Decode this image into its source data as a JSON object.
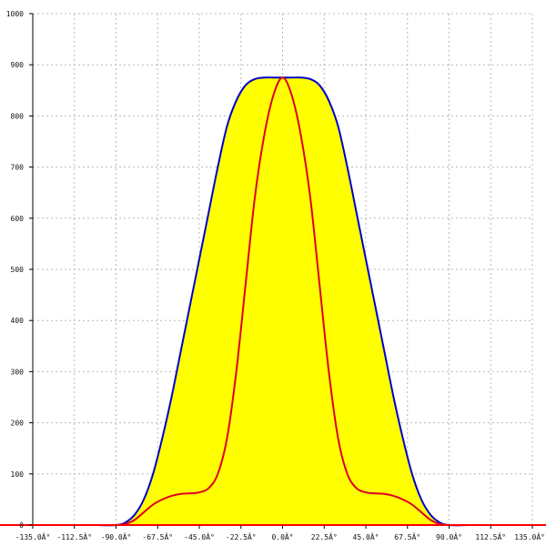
{
  "chart_data": {
    "type": "area",
    "title": "",
    "xlabel": "",
    "ylabel": "",
    "xlim": [
      -135,
      135
    ],
    "ylim": [
      0,
      1000
    ],
    "grid": true,
    "x_ticks": [
      {
        "value": -135,
        "label": "-135.0Â°"
      },
      {
        "value": -112.5,
        "label": "-112.5Â°"
      },
      {
        "value": -90,
        "label": "-90.0Â°"
      },
      {
        "value": -67.5,
        "label": "-67.5Â°"
      },
      {
        "value": -45,
        "label": "-45.0Â°"
      },
      {
        "value": -22.5,
        "label": "-22.5Â°"
      },
      {
        "value": 0,
        "label": "0.0Â°"
      },
      {
        "value": 22.5,
        "label": "22.5Â°"
      },
      {
        "value": 45,
        "label": "45.0Â°"
      },
      {
        "value": 67.5,
        "label": "67.5Â°"
      },
      {
        "value": 90,
        "label": "90.0Â°"
      },
      {
        "value": 112.5,
        "label": "112.5Â°"
      },
      {
        "value": 135,
        "label": "135.0Â°"
      }
    ],
    "y_ticks": [
      {
        "value": 0,
        "label": "0"
      },
      {
        "value": 100,
        "label": "100"
      },
      {
        "value": 200,
        "label": "200"
      },
      {
        "value": 300,
        "label": "300"
      },
      {
        "value": 400,
        "label": "400"
      },
      {
        "value": 500,
        "label": "500"
      },
      {
        "value": 600,
        "label": "600"
      },
      {
        "value": 700,
        "label": "700"
      },
      {
        "value": 800,
        "label": "800"
      },
      {
        "value": 900,
        "label": "900"
      },
      {
        "value": 1000,
        "label": "1000"
      }
    ],
    "series": [
      {
        "color": "#0000cc",
        "fill": "#ffff00",
        "filled": true,
        "x": [
          -100,
          -90,
          -85,
          -80,
          -75,
          -70,
          -65,
          -60,
          -55,
          -50,
          -45,
          -40,
          -35,
          -30,
          -25,
          -20,
          -15,
          -10,
          -5,
          0,
          5,
          10,
          15,
          20,
          25,
          30,
          35,
          40,
          45,
          50,
          55,
          60,
          65,
          70,
          75,
          80,
          85,
          90,
          100
        ],
        "y": [
          0,
          0,
          5,
          20,
          50,
          100,
          170,
          250,
          340,
          430,
          520,
          610,
          700,
          780,
          830,
          860,
          872,
          875,
          875,
          875,
          875,
          875,
          872,
          860,
          830,
          780,
          700,
          610,
          520,
          430,
          340,
          250,
          170,
          100,
          50,
          20,
          5,
          0,
          0
        ]
      },
      {
        "color": "#dd0022",
        "fill": "none",
        "filled": false,
        "x": [
          -100,
          -90,
          -85,
          -80,
          -75,
          -70,
          -65,
          -60,
          -55,
          -50,
          -45,
          -40,
          -35,
          -30,
          -25,
          -20,
          -15,
          -10,
          -5,
          0,
          5,
          10,
          15,
          20,
          25,
          30,
          35,
          40,
          45,
          50,
          55,
          60,
          65,
          70,
          75,
          80,
          85,
          90,
          100
        ],
        "y": [
          0,
          0,
          2,
          10,
          25,
          40,
          50,
          57,
          61,
          62,
          64,
          72,
          100,
          170,
          300,
          470,
          640,
          760,
          840,
          875,
          840,
          760,
          640,
          470,
          300,
          170,
          100,
          72,
          64,
          62,
          61,
          57,
          50,
          40,
          25,
          10,
          2,
          0,
          0
        ]
      }
    ],
    "baseline": {
      "value": 0,
      "color": "#ff0000"
    }
  }
}
